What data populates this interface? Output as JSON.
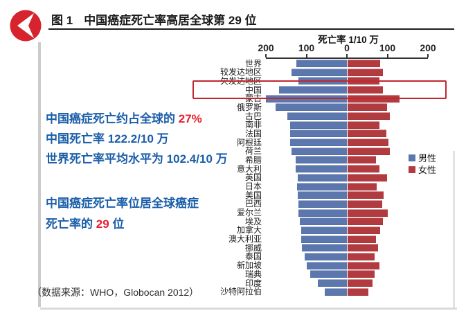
{
  "header": {
    "figure_label": "图 1",
    "title": "中国癌症死亡率高居全球第 29 位"
  },
  "stats_block1": {
    "line1_text": "中国癌症死亡约占全球的 ",
    "line1_value": "27%",
    "line2": "中国死亡率 122.2/10 万",
    "line3": "世界死亡率平均水平为 102.4/10 万"
  },
  "stats_block2": {
    "line1": "中国癌症死亡率位居全球癌症",
    "line2_text": "死亡率的 ",
    "line2_value": "29",
    "line2_suffix": " 位"
  },
  "source_note": "（数据来源：WHO，Globocan 2012）",
  "colors": {
    "logo_red": "#d6232e",
    "accent_blue_text": "#1b5ea9",
    "accent_red_text": "#e3202e",
    "male_bar": "#5b77ae",
    "female_bar": "#b23b40",
    "highlight_box": "#c1272d"
  },
  "chart_data": {
    "type": "bar",
    "variant": "diverging-horizontal-tornado",
    "axis_title": "死亡率 1/10 万",
    "unit": "per 100,000",
    "xlim": [
      -200,
      200
    ],
    "grid": false,
    "legend_position": "right",
    "highlight_category": "中国",
    "axis_ticks": [
      {
        "label": "200",
        "value": -200
      },
      {
        "label": "100",
        "value": -100
      },
      {
        "label": "0",
        "value": 0
      },
      {
        "label": "100",
        "value": 100
      },
      {
        "label": "200",
        "value": 200
      }
    ],
    "categories": [
      "世界",
      "较发达地区",
      "欠发达地区",
      "中国",
      "蒙古",
      "俄罗斯",
      "古巴",
      "南非",
      "法国",
      "阿根廷",
      "荷兰",
      "希腊",
      "意大利",
      "英国",
      "日本",
      "美国",
      "巴西",
      "爱尔兰",
      "埃及",
      "加拿大",
      "澳大利亚",
      "挪威",
      "泰国",
      "新加坡",
      "瑞典",
      "印度",
      "沙特阿拉伯"
    ],
    "series": [
      {
        "name": "男性",
        "side": "left",
        "color": "#5b77ae",
        "values": [
          125,
          137,
          120,
          167,
          200,
          176,
          147,
          141,
          141,
          140,
          137,
          127,
          127,
          121,
          123,
          121,
          120,
          120,
          116,
          113,
          113,
          111,
          105,
          100,
          90,
          71,
          54
        ]
      },
      {
        "name": "女性",
        "side": "right",
        "color": "#b23b40",
        "values": [
          80,
          88,
          78,
          87,
          129,
          98,
          105,
          79,
          95,
          101,
          105,
          70,
          79,
          98,
          71,
          89,
          85,
          99,
          88,
          81,
          70,
          75,
          67,
          78,
          67,
          61,
          52
        ]
      }
    ]
  }
}
